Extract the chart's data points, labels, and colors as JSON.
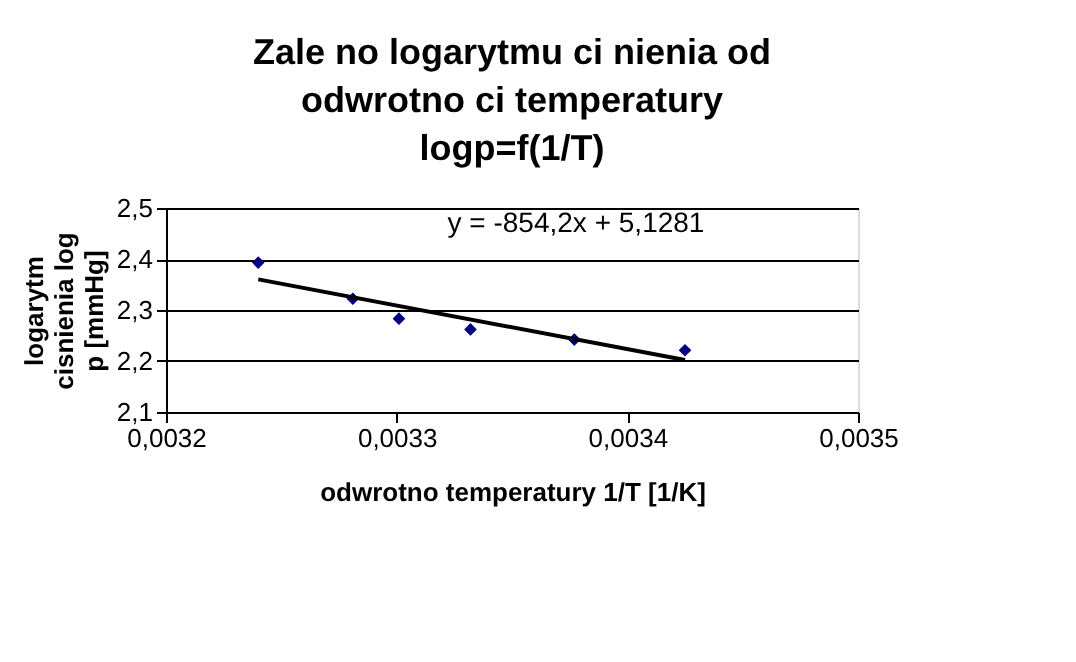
{
  "chart_data": {
    "type": "scatter",
    "title": "Zale  no    logarytmu ci  nienia  od\nodwrotno  ci temperatury\nlogp=f(1/T)",
    "xlabel": "odwrotno     temperatury 1/T  [1/K]",
    "ylabel": "logarytm\ncisnienia log\np [mmHg]",
    "series": [
      {
        "type": "scatter",
        "color": "#000080",
        "marker": "diamond",
        "x": [
          0.00324,
          0.003281,
          0.003301,
          0.003332,
          0.003377,
          0.003425
        ],
        "values": [
          2.393,
          2.322,
          2.283,
          2.262,
          2.242,
          2.221
        ]
      },
      {
        "type": "line",
        "color": "#000000",
        "x": [
          0.00324,
          0.003425
        ],
        "values": [
          2.36,
          2.202
        ]
      }
    ],
    "annotations": [
      "y = -854,2x + 5,1281"
    ],
    "xlim": [
      0.0032,
      0.0035
    ],
    "ylim": [
      2.1,
      2.5
    ],
    "xticks": [
      {
        "value": 0.0032,
        "label": "0,0032"
      },
      {
        "value": 0.0033,
        "label": "0,0033"
      },
      {
        "value": 0.0034,
        "label": "0,0034"
      },
      {
        "value": 0.0035,
        "label": "0,0035"
      }
    ],
    "yticks": [
      {
        "value": 2.1,
        "label": "2,1"
      },
      {
        "value": 2.2,
        "label": "2,2"
      },
      {
        "value": 2.3,
        "label": "2,3"
      },
      {
        "value": 2.4,
        "label": "2,4"
      },
      {
        "value": 2.5,
        "label": "2,5"
      }
    ],
    "grid": "y"
  }
}
